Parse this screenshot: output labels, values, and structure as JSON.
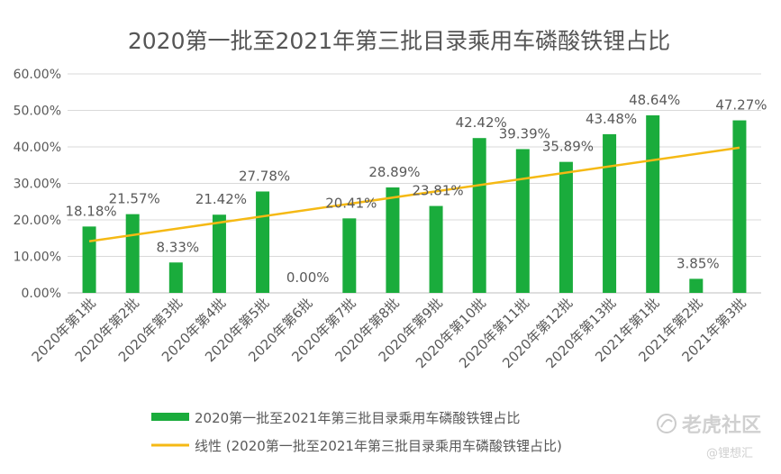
{
  "chart_data": {
    "type": "bar",
    "title": "2020第一批至2021年第三批目录乘用车磷酸铁锂占比",
    "categories": [
      "2020年第1批",
      "2020年第2批",
      "2020年第3批",
      "2020年第4批",
      "2020年第5批",
      "2020年第6批",
      "2020年第7批",
      "2020年第8批",
      "2020年第9批",
      "2020年第10批",
      "2020年第11批",
      "2020年第12批",
      "2020年第13批",
      "2021年第1批",
      "2021年第2批",
      "2021年第3批"
    ],
    "series": [
      {
        "name": "2020第一批至2021年第三批目录乘用车磷酸铁锂占比",
        "values": [
          18.18,
          21.57,
          8.33,
          21.42,
          27.78,
          0.0,
          20.41,
          28.89,
          23.81,
          42.42,
          39.39,
          35.89,
          43.48,
          48.64,
          3.85,
          47.27
        ],
        "labels": [
          "18.18%",
          "21.57%",
          "8.33%",
          "21.42%",
          "27.78%",
          "0.00%",
          "20.41%",
          "28.89%",
          "23.81%",
          "42.42%",
          "39.39%",
          "35.89%",
          "43.48%",
          "48.64%",
          "3.85%",
          "47.27%"
        ],
        "color": "#1aac3c"
      }
    ],
    "trendline": {
      "name": "线性 (2020第一批至2021年第三批目录乘用车磷酸铁锂占比)",
      "type": "linear",
      "color": "#f5b914"
    },
    "y_ticks": [
      "0.00%",
      "10.00%",
      "20.00%",
      "30.00%",
      "40.00%",
      "50.00%",
      "60.00%"
    ],
    "ylim": [
      0,
      60
    ],
    "xlabel": "",
    "ylabel": "",
    "grid": true,
    "legend_position": "bottom"
  },
  "watermark": {
    "brand": "老虎社区",
    "handle": "@锂想汇"
  }
}
